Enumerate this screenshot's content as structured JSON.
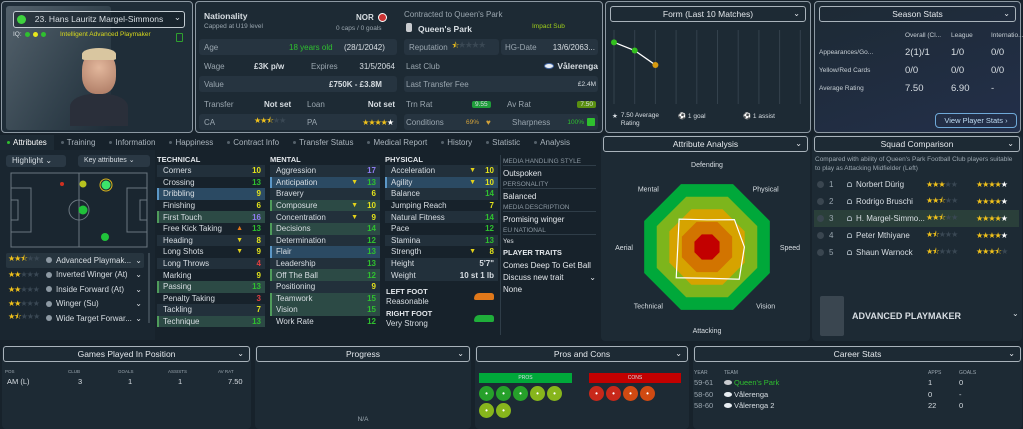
{
  "player": {
    "name": "23. Hans Lauritz Margel-Simmons",
    "iq_label": "IQ:",
    "description": "Intelligent Advanced Playmaker"
  },
  "info": {
    "nationality_label": "Nationality",
    "nationality_sub": "Capped at U19 level",
    "nation_code": "NOR",
    "caps": "0 caps / 0 goals",
    "age_label": "Age",
    "age": "18 years old",
    "dob": "(28/1/2042)",
    "wage_label": "Wage",
    "wage": "£3K p/w",
    "expires_label": "Expires",
    "expires": "31/5/2064",
    "value_label": "Value",
    "value": "£750K - £3.8M",
    "transfer_label": "Transfer",
    "transfer": "Not set",
    "loan_label": "Loan",
    "loan": "Not set",
    "ca_label": "CA",
    "ca_stars": 2.5,
    "pa_label": "PA",
    "pa_stars": 5,
    "contracted": "Contracted to Queen's Park",
    "club": "Queen's Park",
    "squad_status": "Impact Sub",
    "reputation_label": "Reputation",
    "reputation_stars": 0.5,
    "hg_label": "HG-Date",
    "hg": "13/6/2063...",
    "last_club_label": "Last Club",
    "last_club": "Vålerenga",
    "fee_label": "Last Transfer Fee",
    "fee": "£2.4M",
    "trn_label": "Trn Rat",
    "trn": "9.55",
    "av_label": "Av Rat",
    "av": "7.50",
    "cond_label": "Conditions",
    "cond": "69%",
    "sharp_label": "Sharpness",
    "sharp": "100%"
  },
  "form": {
    "title": "Form (Last 10 Matches)",
    "ratings": [
      8.0,
      7.6,
      6.9
    ],
    "avg": "7.50 Average Rating",
    "goals": "1 goal",
    "assists": "1 assist"
  },
  "season": {
    "title": "Season Stats",
    "cols": [
      "Overall (Cl...",
      "League",
      "Internatio..."
    ],
    "rows": [
      {
        "label": "Appearances/Go...",
        "vals": [
          "2(1)/1",
          "1/0",
          "0/0"
        ]
      },
      {
        "label": "Yellow/Red Cards",
        "vals": [
          "0/0",
          "0/0",
          "0/0"
        ]
      },
      {
        "label": "Average Rating",
        "vals": [
          "7.50",
          "6.90",
          "-"
        ]
      }
    ],
    "button": "View Player Stats"
  },
  "tabs": [
    "Attributes",
    "Training",
    "Information",
    "Happiness",
    "Contract Info",
    "Transfer Status",
    "Medical Report",
    "History",
    "Statistic",
    "Analysis"
  ],
  "left": {
    "highlight": "Highlight",
    "key_attrs": "Key attributes",
    "roles": [
      {
        "stars": 2.5,
        "name": "Advanced Playmak..."
      },
      {
        "stars": 2,
        "name": "Inverted Winger (At)"
      },
      {
        "stars": 2,
        "name": "Inside Forward (At)"
      },
      {
        "stars": 2,
        "name": "Winger (Su)"
      },
      {
        "stars": 1.5,
        "name": "Wide Target Forwar..."
      }
    ]
  },
  "attributes": {
    "technical": {
      "title": "TECHNICAL",
      "items": [
        {
          "n": "Corners",
          "v": 10
        },
        {
          "n": "Crossing",
          "v": 13
        },
        {
          "n": "Dribbling",
          "v": 9,
          "hl": "role"
        },
        {
          "n": "Finishing",
          "v": 6
        },
        {
          "n": "First Touch",
          "v": 16,
          "hl": "key"
        },
        {
          "n": "Free Kick Taking",
          "v": 13,
          "trend": "up"
        },
        {
          "n": "Heading",
          "v": 8,
          "trend": "down"
        },
        {
          "n": "Long Shots",
          "v": 9,
          "trend": "down"
        },
        {
          "n": "Long Throws",
          "v": 4
        },
        {
          "n": "Marking",
          "v": 9
        },
        {
          "n": "Passing",
          "v": 13,
          "hl": "key"
        },
        {
          "n": "Penalty Taking",
          "v": 3
        },
        {
          "n": "Tackling",
          "v": 7
        },
        {
          "n": "Technique",
          "v": 13,
          "hl": "key"
        }
      ]
    },
    "mental": {
      "title": "MENTAL",
      "items": [
        {
          "n": "Aggression",
          "v": 17
        },
        {
          "n": "Anticipation",
          "v": 13,
          "hl": "role",
          "trend": "down"
        },
        {
          "n": "Bravery",
          "v": 6
        },
        {
          "n": "Composure",
          "v": 10,
          "hl": "key",
          "trend": "down"
        },
        {
          "n": "Concentration",
          "v": 9,
          "trend": "down"
        },
        {
          "n": "Decisions",
          "v": 14,
          "hl": "key"
        },
        {
          "n": "Determination",
          "v": 12
        },
        {
          "n": "Flair",
          "v": 13,
          "hl": "role"
        },
        {
          "n": "Leadership",
          "v": 13
        },
        {
          "n": "Off The Ball",
          "v": 12,
          "hl": "key"
        },
        {
          "n": "Positioning",
          "v": 9
        },
        {
          "n": "Teamwork",
          "v": 15,
          "hl": "key"
        },
        {
          "n": "Vision",
          "v": 15,
          "hl": "key"
        },
        {
          "n": "Work Rate",
          "v": 12
        }
      ]
    },
    "physical": {
      "title": "PHYSICAL",
      "items": [
        {
          "n": "Acceleration",
          "v": 10,
          "trend": "down"
        },
        {
          "n": "Agility",
          "v": 10,
          "hl": "role",
          "trend": "down"
        },
        {
          "n": "Balance",
          "v": 14
        },
        {
          "n": "Jumping Reach",
          "v": 7
        },
        {
          "n": "Natural Fitness",
          "v": 14
        },
        {
          "n": "Pace",
          "v": 12
        },
        {
          "n": "Stamina",
          "v": 13
        },
        {
          "n": "Strength",
          "v": 8,
          "trend": "down"
        }
      ]
    },
    "height_label": "Height",
    "height": "5'7\"",
    "weight_label": "Weight",
    "weight": "10 st 1 lb",
    "left_foot_label": "LEFT FOOT",
    "left_foot": "Reasonable",
    "right_foot_label": "RIGHT FOOT",
    "right_foot": "Very Strong"
  },
  "media": {
    "style_label": "MEDIA HANDLING STYLE",
    "style": "Outspoken",
    "personality_label": "PERSONALITY",
    "personality": "Balanced",
    "desc_label": "MEDIA DESCRIPTION",
    "desc": "Promising winger",
    "eu_label": "EU NATIONAL",
    "eu": "Yes",
    "traits_label": "PLAYER TRAITS",
    "trait": "Comes Deep To Get Ball",
    "discuss": "Discuss new trait",
    "none": "None"
  },
  "analysis": {
    "title": "Attribute Analysis",
    "axes": [
      "Defending",
      "Physical",
      "Speed",
      "Vision",
      "Attacking",
      "Technical",
      "Aerial",
      "Mental"
    ],
    "values": [
      0.4,
      0.57,
      0.55,
      0.67,
      0.46,
      0.64,
      0.43,
      0.58
    ],
    "band_colors": [
      "#00a83a",
      "#7db51c",
      "#d6a300",
      "#d27400",
      "#c20000"
    ]
  },
  "squad": {
    "title": "Squad Comparison",
    "desc": "Compared with ability of Queen's Park Football Club players suitable to play as Attacking Midfielder (Left)",
    "players": [
      {
        "rank": "1",
        "name": "Norbert Dürig",
        "ca": 3,
        "pa": 5
      },
      {
        "rank": "2",
        "name": "Rodrigo Bruschi",
        "ca": 2.5,
        "pa": 5
      },
      {
        "rank": "3",
        "name": "H. Margel-Simmo...",
        "ca": 2.5,
        "pa": 5,
        "me": true
      },
      {
        "rank": "4",
        "name": "Peter Mthiyane",
        "ca": 1.5,
        "pa": 5
      },
      {
        "rank": "5",
        "name": "Shaun Warnock",
        "ca": 1.5,
        "pa": 3.5
      }
    ],
    "role": "ADVANCED PLAYMAKER"
  },
  "games": {
    "title": "Games Played In Position",
    "cols": [
      "POS",
      "CLUB",
      "GOALS",
      "ASSISTS",
      "AV RAT"
    ],
    "rows": [
      [
        "AM (L)",
        "3",
        "1",
        "1",
        "7.50"
      ]
    ]
  },
  "progress": {
    "title": "Progress",
    "na": "N/A"
  },
  "proscons": {
    "title": "Pros and Cons",
    "pros": "PROS",
    "cons": "CONS",
    "pro_icons": [
      "finishing-icon",
      "passing-icon",
      "dribbling-icon",
      "improving-icon",
      "mental-icon",
      "link-icon",
      "versatility-icon"
    ],
    "con_icons": [
      "star-icon",
      "goal-icon",
      "set-piece-icon",
      "lab-icon"
    ],
    "pro_color": "#00a83a",
    "con_color": "#c20000"
  },
  "career": {
    "title": "Career Stats",
    "cols": [
      "YEAR",
      "TEAM",
      "APPS",
      "GOALS"
    ],
    "rows": [
      [
        "59-61",
        "Queen's Park",
        "1",
        "0"
      ],
      [
        "58-60",
        "Vålerenga",
        "0",
        "-"
      ],
      [
        "58-60",
        "Vålerenga 2",
        "22",
        "0"
      ]
    ]
  }
}
